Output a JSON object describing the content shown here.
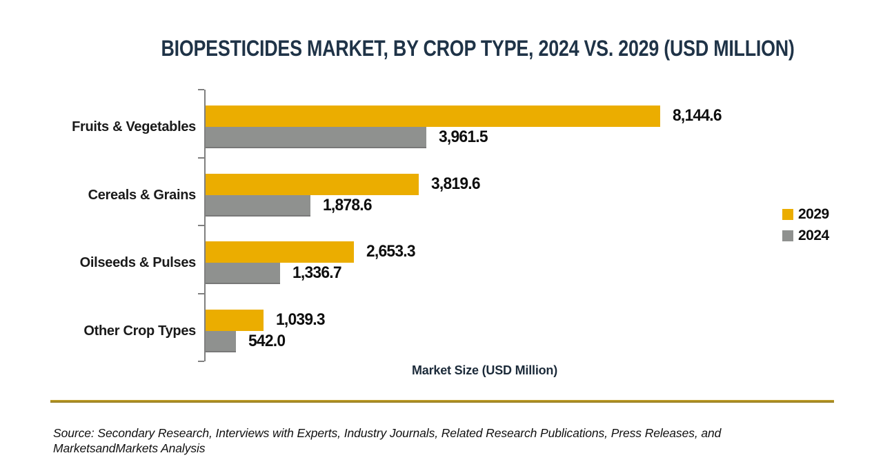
{
  "chart_data": {
    "type": "bar",
    "orientation": "horizontal",
    "title": "BIOPESTICIDES MARKET, BY CROP TYPE, 2024 VS. 2029 (USD MILLION)",
    "categories": [
      "Fruits & Vegetables",
      "Cereals & Grains",
      "Oilseeds & Pulses",
      "Other Crop Types"
    ],
    "series": [
      {
        "name": "2029",
        "color": "#EBAD00",
        "values": [
          8144.6,
          3819.6,
          2653.3,
          1039.3
        ]
      },
      {
        "name": "2024",
        "color": "#8F918F",
        "values": [
          3961.5,
          1878.6,
          1336.7,
          542.0
        ]
      }
    ],
    "value_labels": [
      "8,144.6",
      "3,819.6",
      "2,653.3",
      "1,039.3",
      "3,961.5",
      "1,878.6",
      "1,336.7",
      "542.0"
    ],
    "xlabel": "Market Size (USD Million)",
    "xlim": [
      0,
      10000
    ],
    "grid": false,
    "legend_position": "right-middle"
  },
  "source_note": "Source: Secondary Research, Interviews with Experts, Industry Journals, Related Research Publications, Press Releases, and MarketsandMarkets Analysis",
  "colors": {
    "title_text": "#1F3347",
    "bar_2029": "#EBAD00",
    "bar_2024": "#8F918F",
    "axis": "#7F7F7F",
    "divider_gold": "#A9891F",
    "body_text": "#101010"
  }
}
